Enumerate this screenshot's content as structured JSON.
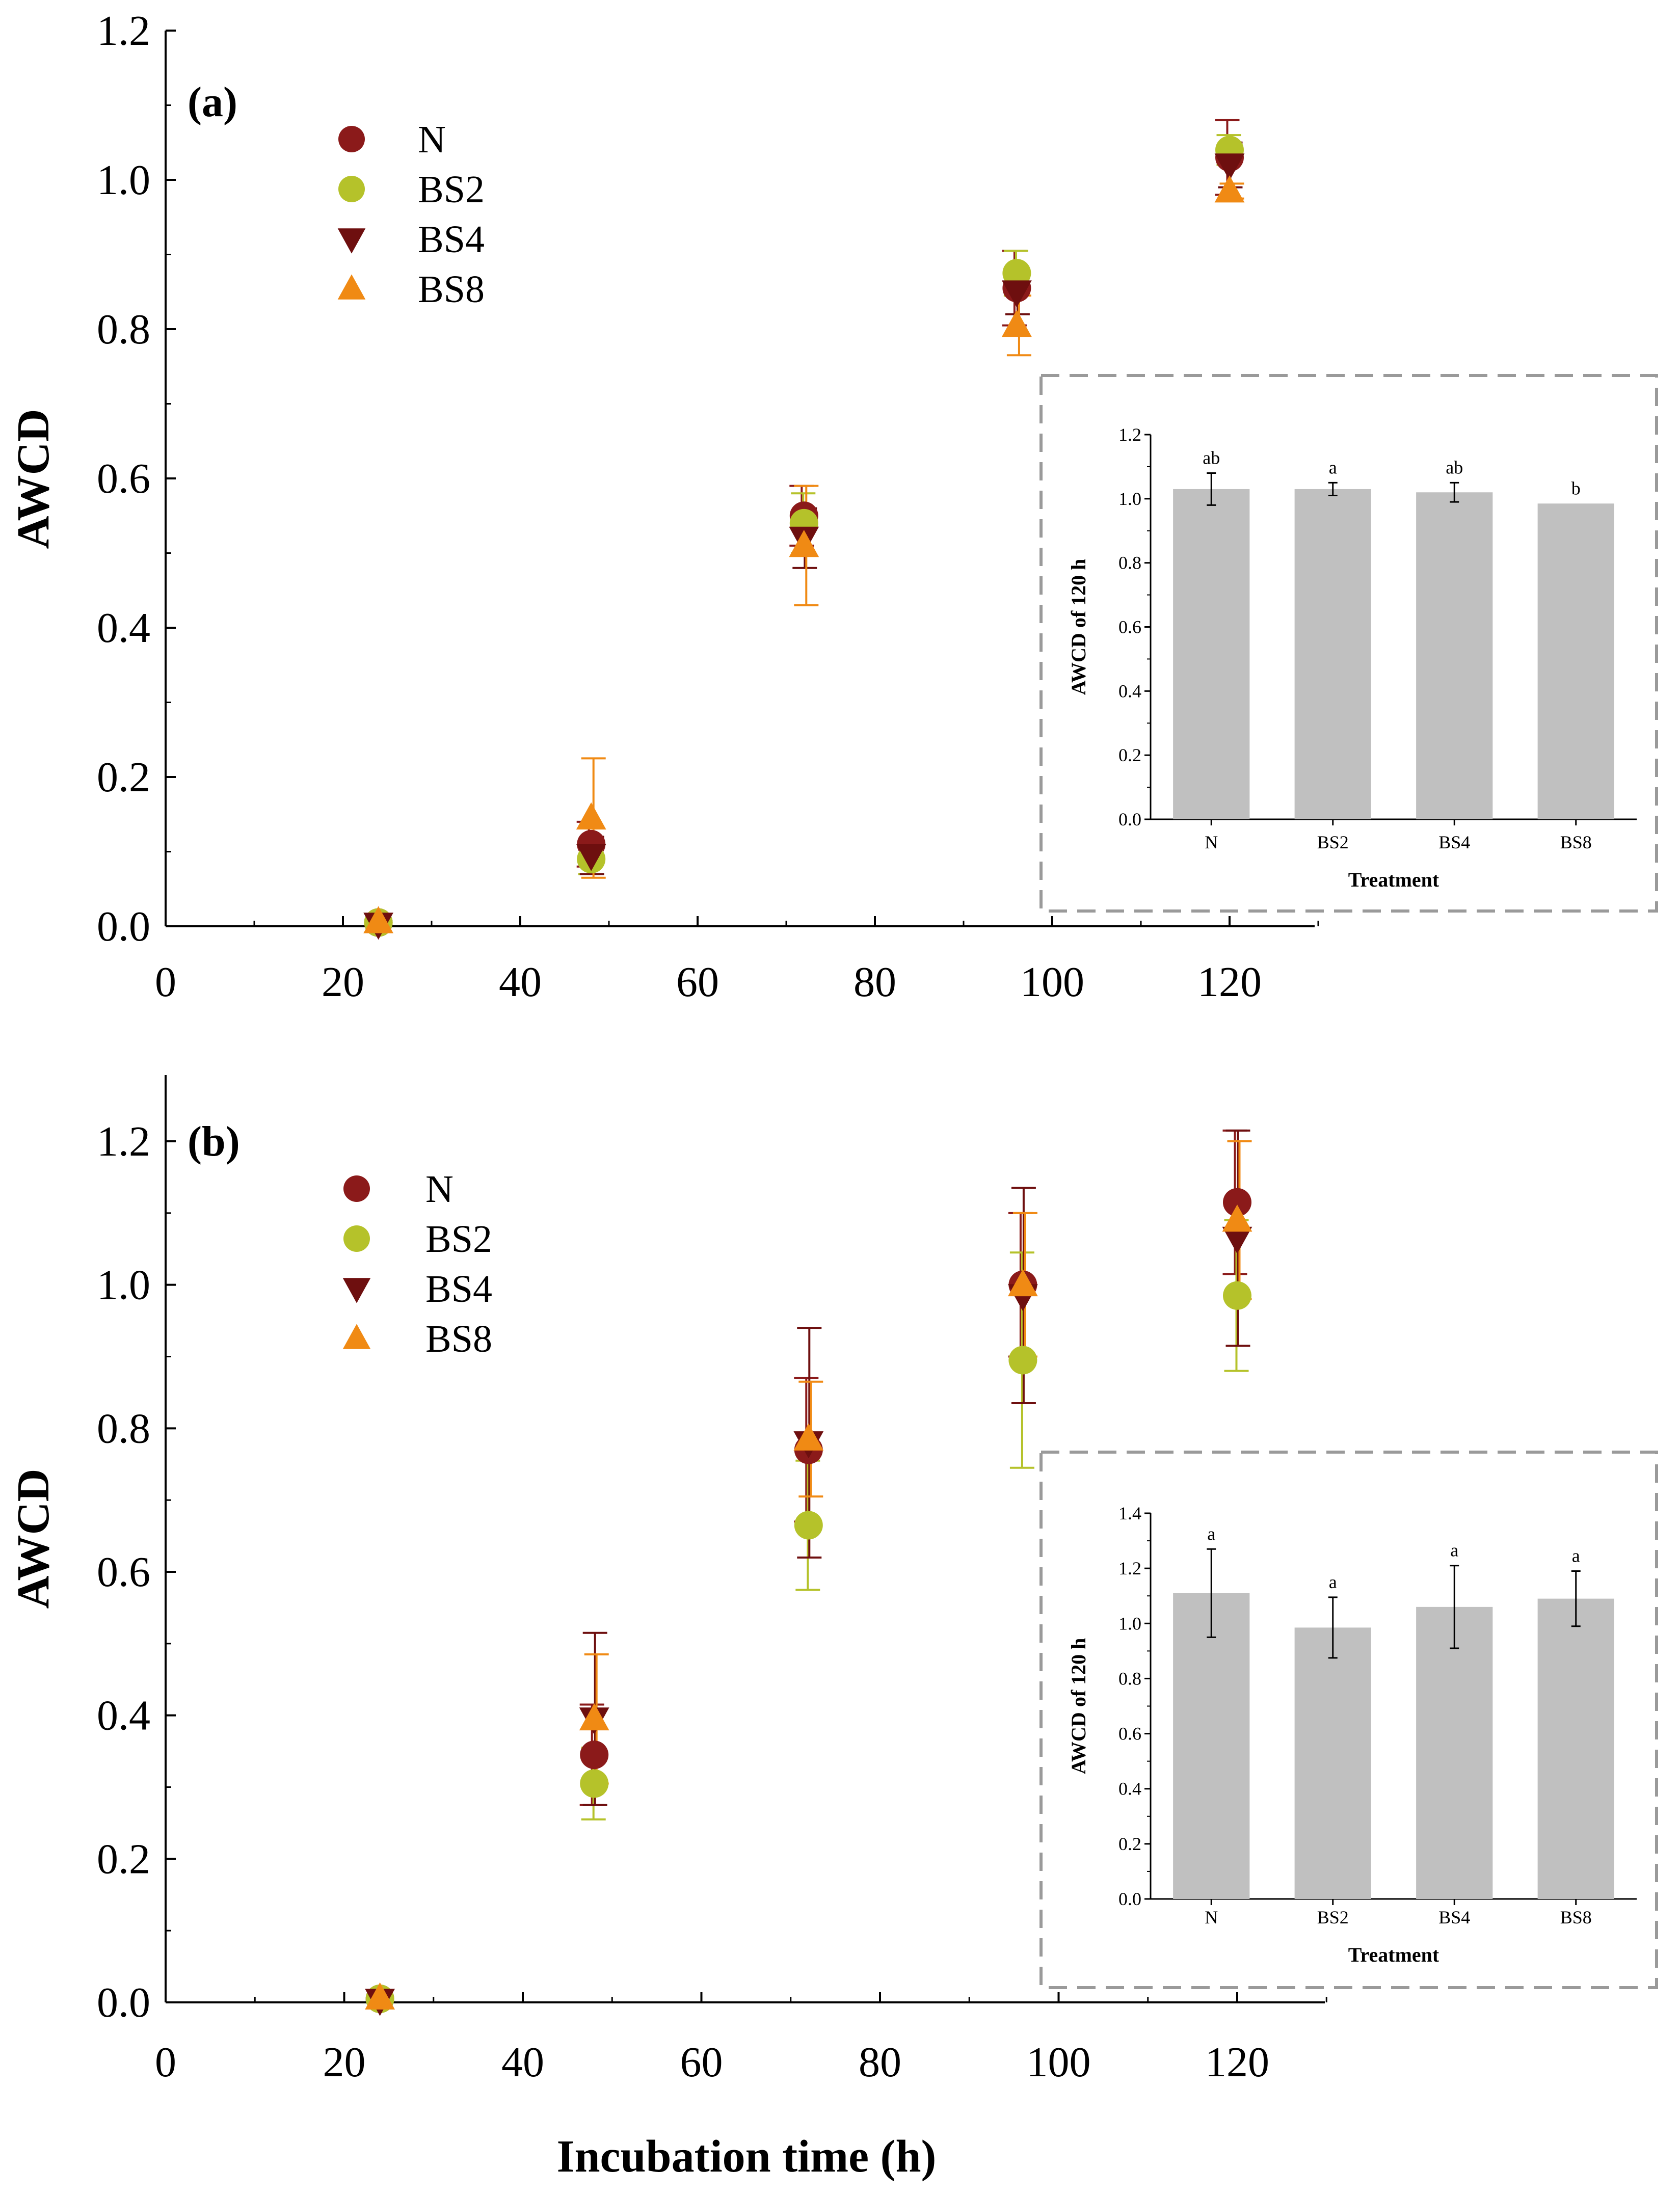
{
  "figure": {
    "xlabel": "Incubation time (h)"
  },
  "colors": {
    "N": "#8b1a1a",
    "BS2": "#b5c22a",
    "BS4": "#6e0f0f",
    "BS8": "#f08a14",
    "bar": "#c0c0c0",
    "axis": "#000000",
    "inset_border": "#9a9a9a"
  },
  "chart_data": [
    {
      "panel": "(a)",
      "type": "scatter",
      "title": "",
      "xlabel": "Incubation time (h)",
      "ylabel": "AWCD",
      "xlim": [
        0,
        130
      ],
      "ylim": [
        0,
        1.2
      ],
      "x_ticks": [
        "0",
        "20",
        "40",
        "60",
        "80",
        "100",
        "120"
      ],
      "y_ticks": [
        "0.0",
        "0.2",
        "0.4",
        "0.6",
        "0.8",
        "1.0",
        "1.2"
      ],
      "x": [
        24,
        48,
        72,
        96,
        120
      ],
      "series": [
        {
          "name": "N",
          "marker": "circle",
          "values": [
            0.005,
            0.11,
            0.55,
            0.855,
            1.03
          ],
          "errors": [
            0.003,
            0.03,
            0.04,
            0.05,
            0.05
          ]
        },
        {
          "name": "BS2",
          "marker": "circle",
          "values": [
            0.005,
            0.09,
            0.54,
            0.875,
            1.04
          ],
          "errors": [
            0.003,
            0.02,
            0.04,
            0.03,
            0.02
          ]
        },
        {
          "name": "BS4",
          "marker": "triangle-down",
          "values": [
            0.003,
            0.095,
            0.52,
            0.85,
            1.02
          ],
          "errors": [
            0.003,
            0.025,
            0.04,
            0.03,
            0.03
          ]
        },
        {
          "name": "BS8",
          "marker": "triangle-up",
          "values": [
            0.006,
            0.145,
            0.51,
            0.805,
            0.985
          ],
          "errors": [
            0.003,
            0.08,
            0.08,
            0.04,
            0.01
          ]
        }
      ],
      "inset": {
        "type": "bar",
        "xlabel": "Treatment",
        "ylabel": "AWCD of 120 h",
        "ylim": [
          0,
          1.2
        ],
        "y_ticks": [
          "0.0",
          "0.2",
          "0.4",
          "0.6",
          "0.8",
          "1.0",
          "1.2"
        ],
        "categories": [
          "N",
          "BS2",
          "BS4",
          "BS8"
        ],
        "values": [
          1.03,
          1.03,
          1.02,
          0.985
        ],
        "errors": [
          0.05,
          0.02,
          0.03,
          0.0
        ],
        "letters": [
          "ab",
          "a",
          "ab",
          "b"
        ]
      }
    },
    {
      "panel": "(b)",
      "type": "scatter",
      "title": "",
      "xlabel": "Incubation time (h)",
      "ylabel": "AWCD",
      "xlim": [
        0,
        130
      ],
      "ylim": [
        0,
        1.3
      ],
      "x_ticks": [
        "0",
        "20",
        "40",
        "60",
        "80",
        "100",
        "120"
      ],
      "y_ticks": [
        "0.0",
        "0.2",
        "0.4",
        "0.6",
        "0.8",
        "1.0",
        "1.2"
      ],
      "x": [
        24,
        48,
        72,
        96,
        120
      ],
      "series": [
        {
          "name": "N",
          "marker": "circle",
          "values": [
            0.005,
            0.345,
            0.77,
            1.0,
            1.115
          ],
          "errors": [
            0.003,
            0.07,
            0.1,
            0.1,
            0.1
          ]
        },
        {
          "name": "BS2",
          "marker": "circle",
          "values": [
            0.005,
            0.305,
            0.665,
            0.895,
            0.985
          ],
          "errors": [
            0.003,
            0.05,
            0.09,
            0.15,
            0.105
          ]
        },
        {
          "name": "BS4",
          "marker": "triangle-down",
          "values": [
            0.003,
            0.395,
            0.78,
            0.985,
            1.065
          ],
          "errors": [
            0.003,
            0.12,
            0.16,
            0.15,
            0.15
          ]
        },
        {
          "name": "BS8",
          "marker": "triangle-up",
          "values": [
            0.006,
            0.395,
            0.785,
            1.0,
            1.09
          ],
          "errors": [
            0.003,
            0.09,
            0.08,
            0.1,
            0.11
          ]
        }
      ],
      "inset": {
        "type": "bar",
        "xlabel": "Treatment",
        "ylabel": "AWCD of 120 h",
        "ylim": [
          0,
          1.4
        ],
        "y_ticks": [
          "0.0",
          "0.2",
          "0.4",
          "0.6",
          "0.8",
          "1.0",
          "1.2",
          "1.4"
        ],
        "categories": [
          "N",
          "BS2",
          "BS4",
          "BS8"
        ],
        "values": [
          1.11,
          0.985,
          1.06,
          1.09
        ],
        "errors": [
          0.16,
          0.11,
          0.15,
          0.1
        ],
        "letters": [
          "a",
          "a",
          "a",
          "a"
        ]
      }
    }
  ]
}
